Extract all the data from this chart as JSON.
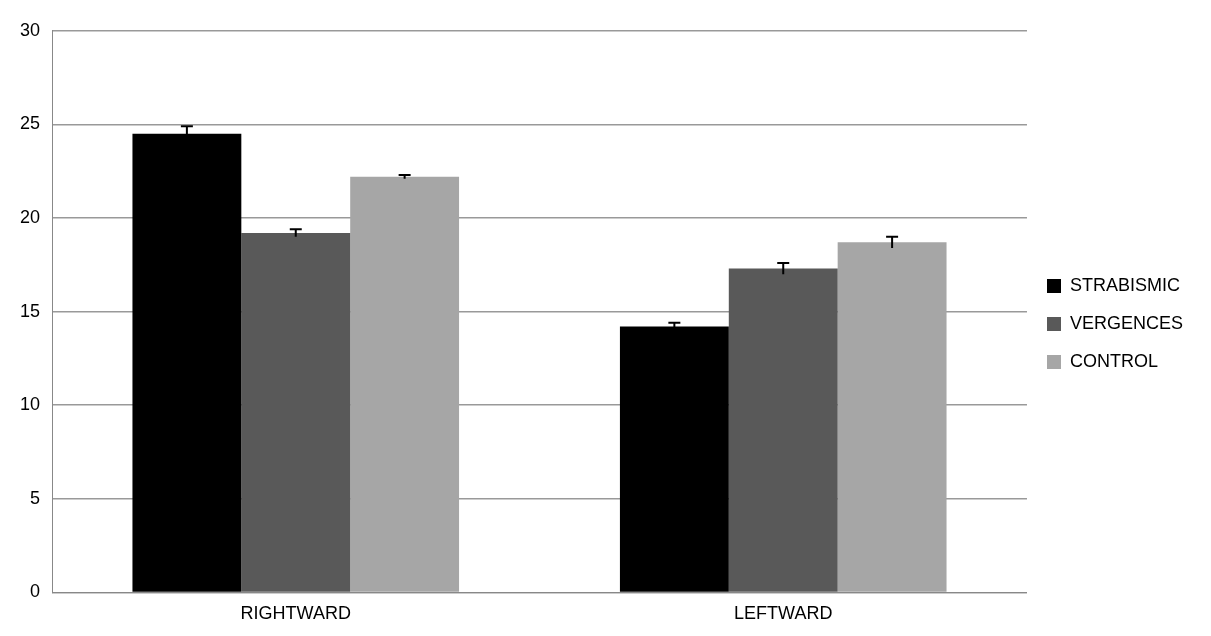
{
  "chart_data": {
    "type": "bar",
    "categories": [
      "RIGHTWARD",
      "LEFTWARD"
    ],
    "series": [
      {
        "name": "STRABISMIC",
        "color": "#000000",
        "values": [
          24.5,
          14.2
        ],
        "errors": [
          0.4,
          0.2
        ]
      },
      {
        "name": "VERGENCES",
        "color": "#595959",
        "values": [
          19.2,
          17.3
        ],
        "errors": [
          0.2,
          0.3
        ]
      },
      {
        "name": "CONTROL",
        "color": "#a6a6a6",
        "values": [
          22.2,
          18.7
        ],
        "errors": [
          0.1,
          0.3
        ]
      }
    ],
    "ylim": [
      0,
      30
    ],
    "yticks": [
      0,
      5,
      10,
      15,
      20,
      25,
      30
    ],
    "grid": "y",
    "legend": "right"
  }
}
